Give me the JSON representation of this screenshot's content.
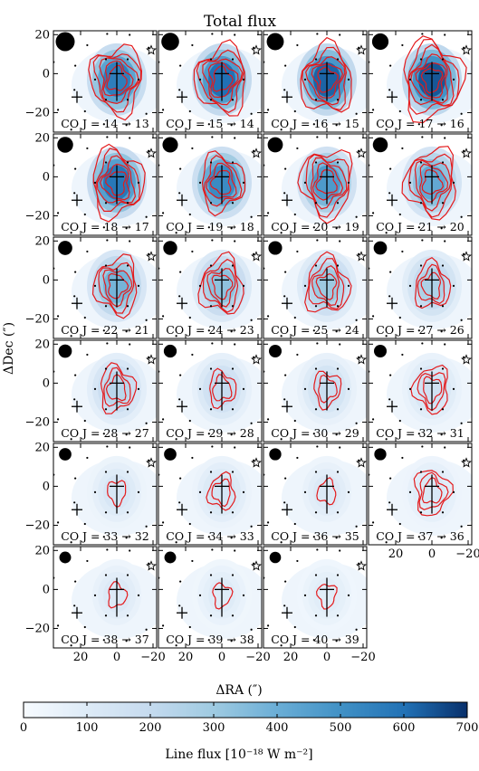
{
  "chart_data": {
    "type": "heatmap",
    "title": "Total flux",
    "xlabel": "ΔRA (″)",
    "ylabel": "ΔDec (″)",
    "xlim": [
      35,
      -22
    ],
    "ylim": [
      -30,
      22
    ],
    "x_ticks": [
      20,
      0,
      -20
    ],
    "y_ticks": [
      20,
      0,
      -20
    ],
    "colorbar": {
      "label": "Line flux [10⁻¹⁸ W m⁻²]",
      "range": [
        0,
        700
      ],
      "ticks": [
        0,
        100,
        200,
        300,
        400,
        500,
        600,
        700
      ],
      "colormap": "Blues"
    },
    "panels": [
      {
        "label": "CO J = 14 → 13",
        "peak": 560,
        "levels": 5,
        "beam": 1.0
      },
      {
        "label": "CO J = 15 → 14",
        "peak": 600,
        "levels": 5,
        "beam": 0.9
      },
      {
        "label": "CO J = 16 → 15",
        "peak": 620,
        "levels": 5,
        "beam": 0.85
      },
      {
        "label": "CO J = 17 → 16",
        "peak": 640,
        "levels": 6,
        "beam": 0.8
      },
      {
        "label": "CO J = 18 → 17",
        "peak": 580,
        "levels": 5,
        "beam": 0.75
      },
      {
        "label": "CO J = 19 → 18",
        "peak": 520,
        "levels": 4,
        "beam": 0.72
      },
      {
        "label": "CO J = 20 → 19",
        "peak": 470,
        "levels": 5,
        "beam": 0.7
      },
      {
        "label": "CO J = 21 → 20",
        "peak": 420,
        "levels": 5,
        "beam": 0.68
      },
      {
        "label": "CO J = 22 → 21",
        "peak": 380,
        "levels": 4,
        "beam": 0.62
      },
      {
        "label": "CO J = 24 → 23",
        "peak": 330,
        "levels": 4,
        "beam": 0.6
      },
      {
        "label": "CO J = 25 → 24",
        "peak": 300,
        "levels": 4,
        "beam": 0.58
      },
      {
        "label": "CO J = 27 → 26",
        "peak": 260,
        "levels": 3,
        "beam": 0.55
      },
      {
        "label": "CO J = 28 → 27",
        "peak": 230,
        "levels": 3,
        "beam": 0.55
      },
      {
        "label": "CO J = 29 → 28",
        "peak": 200,
        "levels": 2,
        "beam": 0.52
      },
      {
        "label": "CO J = 30 → 29",
        "peak": 180,
        "levels": 2,
        "beam": 0.5
      },
      {
        "label": "CO J = 32 → 31",
        "peak": 160,
        "levels": 3,
        "beam": 0.5
      },
      {
        "label": "CO J = 33 → 32",
        "peak": 130,
        "levels": 1,
        "beam": 0.48
      },
      {
        "label": "CO J = 34 → 33",
        "peak": 140,
        "levels": 2,
        "beam": 0.48
      },
      {
        "label": "CO J = 36 → 35",
        "peak": 110,
        "levels": 1,
        "beam": 0.45
      },
      {
        "label": "CO J = 37 → 36",
        "peak": 120,
        "levels": 3,
        "beam": 0.45
      },
      {
        "label": "CO J = 38 → 37",
        "peak": 110,
        "levels": 1,
        "beam": 0.42
      },
      {
        "label": "CO J = 39 → 38",
        "peak": 100,
        "levels": 1,
        "beam": 0.42
      },
      {
        "label": "CO J = 40 → 39",
        "peak": 90,
        "levels": 1,
        "beam": 0.4
      }
    ],
    "markers": {
      "main_cross": [
        0,
        0
      ],
      "secondary_cross": [
        22,
        -12
      ],
      "star": [
        -19,
        12
      ]
    },
    "colors": {
      "contour": "#e41a1c",
      "marker": "#000000"
    }
  }
}
